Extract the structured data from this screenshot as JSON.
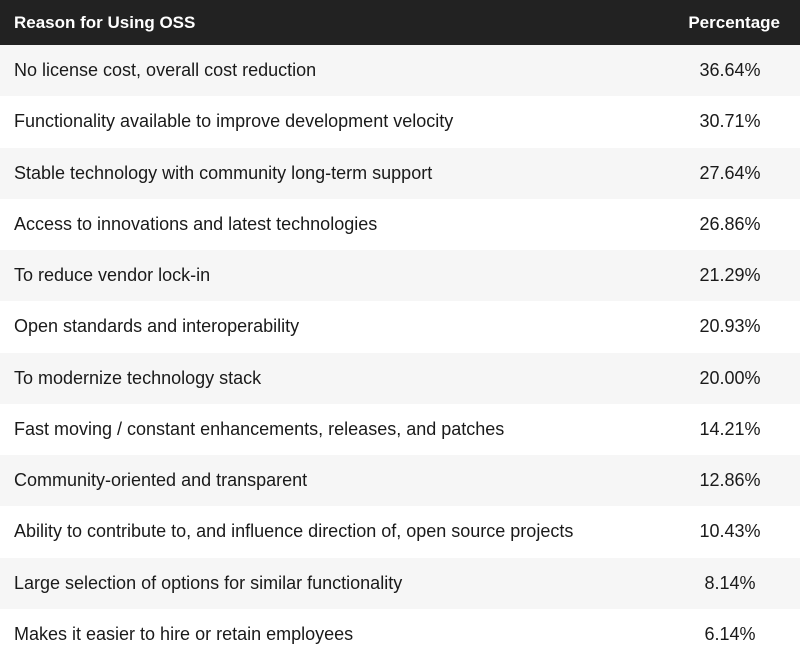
{
  "header": {
    "reason": "Reason for Using OSS",
    "percentage": "Percentage"
  },
  "chart_data": {
    "type": "table",
    "columns": [
      "Reason for Using OSS",
      "Percentage"
    ],
    "rows": [
      {
        "reason": "No license cost, overall cost reduction",
        "percentage": "36.64%"
      },
      {
        "reason": "Functionality available to improve development velocity",
        "percentage": "30.71%"
      },
      {
        "reason": "Stable technology with community long-term support",
        "percentage": "27.64%"
      },
      {
        "reason": "Access to innovations and latest technologies",
        "percentage": "26.86%"
      },
      {
        "reason": "To reduce vendor lock-in",
        "percentage": "21.29%"
      },
      {
        "reason": "Open standards and interoperability",
        "percentage": "20.93%"
      },
      {
        "reason": "To modernize technology stack",
        "percentage": "20.00%"
      },
      {
        "reason": "Fast moving / constant enhancements, releases, and patches",
        "percentage": "14.21%"
      },
      {
        "reason": "Community-oriented and transparent",
        "percentage": "12.86%"
      },
      {
        "reason": "Ability to contribute to, and influence direction of, open source projects",
        "percentage": "10.43%"
      },
      {
        "reason": "Large selection of options for similar functionality",
        "percentage": "8.14%"
      },
      {
        "reason": "Makes it easier to hire or retain employees",
        "percentage": "6.14%"
      }
    ]
  }
}
